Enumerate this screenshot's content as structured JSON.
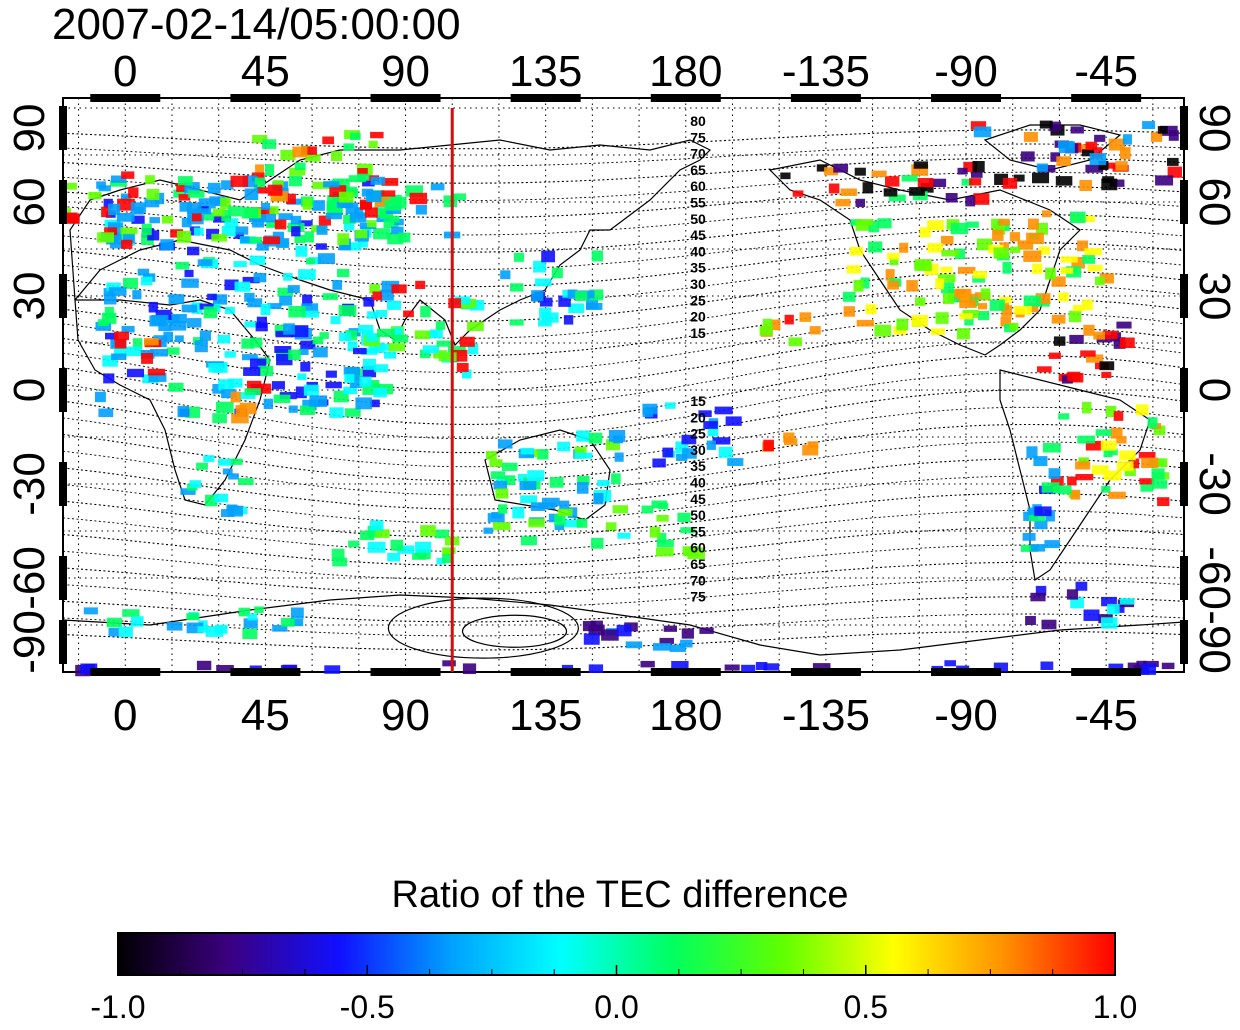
{
  "title": "2007-02-14/05:00:00",
  "map": {
    "x_tick_labels": [
      "0",
      "45",
      "90",
      "135",
      "180",
      "-135",
      "-90",
      "-45"
    ],
    "y_tick_labels": [
      "90",
      "60",
      "30",
      "0",
      "-30",
      "-60",
      "-90"
    ],
    "lon_ticks": [
      0,
      45,
      90,
      135,
      180,
      225,
      270,
      315
    ],
    "lat_ticks": [
      90,
      60,
      30,
      0,
      -30,
      -60,
      -90
    ],
    "xlim": [
      -20,
      340
    ],
    "ylim": [
      -90,
      90
    ],
    "meridian_line_longitude": 105,
    "meridian_line_color": "#d01010",
    "contour_labels_north": [
      "80",
      "75",
      "70",
      "65",
      "60",
      "55",
      "50",
      "45",
      "40",
      "35",
      "30",
      "25",
      "20",
      "15"
    ],
    "contour_labels_south": [
      "15",
      "20",
      "25",
      "30",
      "35",
      "40",
      "45",
      "50",
      "55",
      "60",
      "65",
      "70",
      "75"
    ],
    "grid": "dotted"
  },
  "colorbar": {
    "title": "Ratio of the TEC difference",
    "tick_labels": [
      "-1.0",
      "-0.5",
      "0.0",
      "0.5",
      "1.0"
    ],
    "range": [
      -1.0,
      1.0
    ],
    "colormap": [
      "#000000",
      "#3b0080",
      "#1010ff",
      "#00a0ff",
      "#00ffff",
      "#00ff60",
      "#60ff00",
      "#ffff00",
      "#ff9000",
      "#ff0000"
    ]
  }
}
